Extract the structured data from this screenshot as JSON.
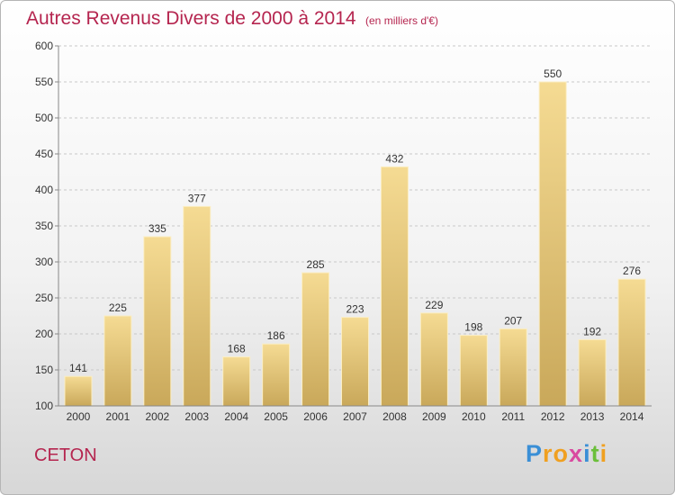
{
  "chart_data": {
    "type": "bar",
    "title": "Autres Revenus Divers de 2000 à 2014",
    "subtitle": "(en milliers d'€)",
    "categories": [
      "2000",
      "2001",
      "2002",
      "2003",
      "2004",
      "2005",
      "2006",
      "2007",
      "2008",
      "2009",
      "2010",
      "2011",
      "2012",
      "2013",
      "2014"
    ],
    "values": [
      141,
      225,
      335,
      377,
      168,
      186,
      285,
      223,
      432,
      229,
      198,
      207,
      550,
      192,
      276
    ],
    "ylim": [
      100,
      600
    ],
    "yticks": [
      100,
      150,
      200,
      250,
      300,
      350,
      400,
      450,
      500,
      550,
      600
    ],
    "grid": true,
    "bar_color": "#e8c97a"
  },
  "location": "CETON",
  "logo": {
    "text": "Proxiti",
    "letters": [
      "P",
      "r",
      "o",
      "x",
      "i",
      "t",
      "i"
    ],
    "colors": [
      "#3a8fd6",
      "#f0a020",
      "#f0a020",
      "#d94aa0",
      "#3a8fd6",
      "#6bbf3a",
      "#f0a020"
    ]
  }
}
